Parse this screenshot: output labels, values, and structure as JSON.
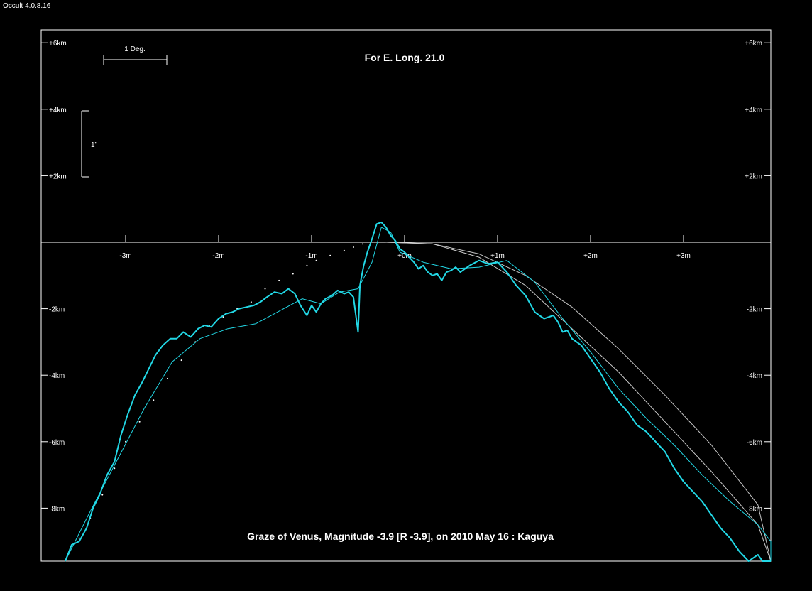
{
  "window": {
    "app_title": "Occult 4.0.8.16"
  },
  "colors": {
    "background": "#000000",
    "foreground": "#ffffff",
    "profile": "#22d8e6",
    "limb_curve": "#c8c8c8"
  },
  "chart_data": {
    "type": "line",
    "title": "For E. Long. 21.0",
    "caption": "Graze of  Venus,  Magnitude -3.9 [R -3.9],  on 2010 May 16  :  Kaguya",
    "x_unit": "minutes of time",
    "y_unit": "km",
    "xlim": [
      -3.65,
      4.2
    ],
    "ylim": [
      -9.6,
      6.0
    ],
    "x_ticks": [
      {
        "value": -3,
        "label": "-3m"
      },
      {
        "value": -2,
        "label": "-2m"
      },
      {
        "value": -1,
        "label": "-1m"
      },
      {
        "value": 0,
        "label": "+0m"
      },
      {
        "value": 1,
        "label": "+1m"
      },
      {
        "value": 2,
        "label": "+2m"
      },
      {
        "value": 3,
        "label": "+3m"
      }
    ],
    "y_ticks": [
      {
        "value": 6,
        "label": "+6km"
      },
      {
        "value": 4,
        "label": "+4km"
      },
      {
        "value": 2,
        "label": "+2km"
      },
      {
        "value": -2,
        "label": "-2km"
      },
      {
        "value": -4,
        "label": "-4km"
      },
      {
        "value": -6,
        "label": "-6km"
      },
      {
        "value": -8,
        "label": "-8km"
      }
    ],
    "scale_bars": {
      "horizontal_label": "1 Deg.",
      "vertical_label": "1\""
    },
    "limb_curves": [
      {
        "x": [
          -0.2,
          0.3,
          0.8,
          1.3,
          1.8,
          2.3,
          2.8,
          3.3,
          3.8,
          4.12
        ],
        "y": [
          0.0,
          -0.05,
          -0.45,
          -1.3,
          -2.6,
          -3.9,
          -5.4,
          -6.9,
          -8.5,
          -9.6
        ]
      },
      {
        "x": [
          -0.2,
          0.3,
          0.8,
          1.3,
          1.8,
          2.3,
          2.8,
          3.3,
          3.8,
          4.2
        ],
        "y": [
          0.0,
          -0.05,
          -0.35,
          -1.0,
          -1.95,
          -3.2,
          -4.6,
          -6.1,
          -7.9,
          -9.6
        ]
      }
    ],
    "dotted_series": {
      "x": [
        -3.5,
        -3.38,
        -3.25,
        -3.12,
        -3.0,
        -2.85,
        -2.7,
        -2.55,
        -2.4,
        -2.25,
        -2.1,
        -1.95,
        -1.8,
        -1.65,
        -1.5,
        -1.35,
        -1.2,
        -1.05,
        -0.95,
        -0.8,
        -0.65,
        -0.55,
        -0.45
      ],
      "y": [
        -8.9,
        -8.3,
        -7.6,
        -6.8,
        -6.0,
        -5.4,
        -4.75,
        -4.1,
        -3.55,
        -3.0,
        -2.5,
        -2.25,
        -2.0,
        -1.8,
        -1.4,
        -1.15,
        -0.95,
        -0.7,
        -0.55,
        -0.4,
        -0.25,
        -0.15,
        -0.05
      ]
    },
    "smooth_profile": {
      "x": [
        -3.65,
        -3.4,
        -3.1,
        -2.8,
        -2.5,
        -2.2,
        -1.9,
        -1.6,
        -1.3,
        -1.1,
        -0.9,
        -0.7,
        -0.5,
        -0.35,
        -0.25,
        -0.15,
        -0.05,
        0.2,
        0.5,
        0.8,
        1.1,
        1.4,
        1.7,
        2.0,
        2.3,
        2.6,
        2.9,
        3.2,
        3.5,
        3.8,
        4.0,
        4.2
      ],
      "y": [
        -9.6,
        -8.2,
        -6.6,
        -5.0,
        -3.6,
        -2.9,
        -2.6,
        -2.45,
        -2.0,
        -1.7,
        -1.85,
        -1.5,
        -1.4,
        -0.6,
        0.45,
        0.3,
        -0.3,
        -0.6,
        -0.8,
        -0.75,
        -0.55,
        -1.2,
        -2.3,
        -3.3,
        -4.4,
        -5.3,
        -6.1,
        -7.0,
        -7.8,
        -8.5,
        -9.0,
        -10.3
      ]
    },
    "observed_profile": {
      "x": [
        -3.65,
        -3.58,
        -3.5,
        -3.42,
        -3.35,
        -3.28,
        -3.2,
        -3.12,
        -3.05,
        -2.98,
        -2.9,
        -2.82,
        -2.75,
        -2.68,
        -2.6,
        -2.52,
        -2.45,
        -2.38,
        -2.3,
        -2.22,
        -2.15,
        -2.08,
        -2.0,
        -1.92,
        -1.85,
        -1.78,
        -1.7,
        -1.62,
        -1.55,
        -1.48,
        -1.4,
        -1.32,
        -1.25,
        -1.18,
        -1.12,
        -1.05,
        -1.0,
        -0.95,
        -0.9,
        -0.85,
        -0.78,
        -0.72,
        -0.65,
        -0.6,
        -0.55,
        -0.5,
        -0.48,
        -0.46,
        -0.44,
        -0.4,
        -0.35,
        -0.3,
        -0.25,
        -0.2,
        -0.15,
        -0.1,
        -0.05,
        0.0,
        0.05,
        0.1,
        0.15,
        0.2,
        0.25,
        0.3,
        0.35,
        0.4,
        0.45,
        0.5,
        0.55,
        0.6,
        0.65,
        0.7,
        0.8,
        0.9,
        1.0,
        1.1,
        1.2,
        1.3,
        1.4,
        1.5,
        1.6,
        1.65,
        1.7,
        1.75,
        1.8,
        1.9,
        2.0,
        2.1,
        2.2,
        2.3,
        2.4,
        2.5,
        2.6,
        2.7,
        2.8,
        2.9,
        3.0,
        3.1,
        3.2,
        3.3,
        3.4,
        3.5,
        3.6,
        3.7,
        3.8,
        3.85,
        3.9,
        3.95,
        4.0,
        4.05,
        4.1,
        4.15,
        4.2
      ],
      "y": [
        -9.6,
        -9.1,
        -9.0,
        -8.6,
        -8.0,
        -7.6,
        -7.0,
        -6.6,
        -5.8,
        -5.2,
        -4.6,
        -4.2,
        -3.8,
        -3.4,
        -3.1,
        -2.9,
        -2.9,
        -2.7,
        -2.85,
        -2.6,
        -2.5,
        -2.55,
        -2.3,
        -2.15,
        -2.1,
        -2.0,
        -1.95,
        -1.9,
        -1.8,
        -1.65,
        -1.5,
        -1.55,
        -1.4,
        -1.55,
        -1.9,
        -2.2,
        -1.9,
        -2.1,
        -1.85,
        -1.7,
        -1.6,
        -1.45,
        -1.55,
        -1.5,
        -1.65,
        -2.7,
        -1.3,
        -1.0,
        -0.7,
        -0.3,
        0.1,
        0.55,
        0.6,
        0.45,
        0.2,
        0.05,
        -0.2,
        -0.3,
        -0.45,
        -0.6,
        -0.8,
        -0.7,
        -0.9,
        -1.0,
        -0.95,
        -1.15,
        -0.9,
        -0.85,
        -0.75,
        -0.9,
        -0.8,
        -0.7,
        -0.55,
        -0.65,
        -0.6,
        -0.9,
        -1.3,
        -1.6,
        -2.1,
        -2.3,
        -2.2,
        -2.4,
        -2.7,
        -2.65,
        -2.9,
        -3.1,
        -3.5,
        -3.9,
        -4.4,
        -4.8,
        -5.1,
        -5.5,
        -5.7,
        -6.0,
        -6.3,
        -6.8,
        -7.2,
        -7.5,
        -7.8,
        -8.2,
        -8.6,
        -8.9,
        -9.3,
        -9.6,
        -9.4,
        -9.6,
        -9.6,
        -9.6,
        -9.6,
        -9.6,
        -9.6,
        -9.6,
        -9.6
      ]
    }
  }
}
